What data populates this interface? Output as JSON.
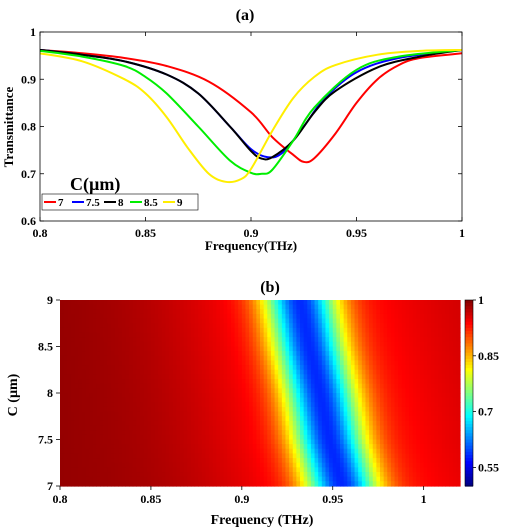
{
  "chart_data": [
    {
      "panel_label": "(a)",
      "type": "line",
      "xlabel": "Frequency(THz)",
      "ylabel": "Transmittance",
      "xlim": [
        0.8,
        1.0
      ],
      "ylim": [
        0.6,
        1.0
      ],
      "xticks": [
        "0.8",
        "0.85",
        "0.9",
        "0.95",
        "1"
      ],
      "yticks": [
        "0.6",
        "0.7",
        "0.8",
        "0.9",
        "1"
      ],
      "grid": false,
      "legend": {
        "title": "C(µm)",
        "placement": "bottom-left",
        "entries": [
          "7",
          "7.5",
          "8",
          "8.5",
          "9"
        ]
      },
      "series": [
        {
          "name": "7",
          "color": "#ff0000",
          "x": [
            0.8,
            0.82,
            0.84,
            0.86,
            0.88,
            0.9,
            0.91,
            0.92,
            0.925,
            0.93,
            0.94,
            0.95,
            0.96,
            0.97,
            0.98,
            1.0
          ],
          "y": [
            0.962,
            0.955,
            0.945,
            0.928,
            0.895,
            0.83,
            0.778,
            0.74,
            0.725,
            0.733,
            0.785,
            0.85,
            0.9,
            0.93,
            0.945,
            0.955
          ]
        },
        {
          "name": "7.5",
          "color": "#0000ff",
          "x": [
            0.8,
            0.82,
            0.84,
            0.86,
            0.875,
            0.89,
            0.9,
            0.908,
            0.915,
            0.925,
            0.935,
            0.95,
            0.97,
            1.0
          ],
          "y": [
            0.962,
            0.952,
            0.938,
            0.91,
            0.87,
            0.8,
            0.752,
            0.735,
            0.745,
            0.8,
            0.86,
            0.915,
            0.945,
            0.962
          ]
        },
        {
          "name": "8",
          "color": "#000000",
          "x": [
            0.8,
            0.82,
            0.84,
            0.86,
            0.875,
            0.89,
            0.9,
            0.905,
            0.91,
            0.92,
            0.93,
            0.94,
            0.96,
            0.98,
            1.0
          ],
          "y": [
            0.962,
            0.952,
            0.938,
            0.91,
            0.87,
            0.8,
            0.748,
            0.732,
            0.735,
            0.77,
            0.83,
            0.875,
            0.925,
            0.948,
            0.962
          ]
        },
        {
          "name": "8.5",
          "color": "#00ee00",
          "x": [
            0.8,
            0.82,
            0.84,
            0.85,
            0.86,
            0.875,
            0.89,
            0.9,
            0.905,
            0.91,
            0.92,
            0.93,
            0.95,
            0.97,
            1.0
          ],
          "y": [
            0.96,
            0.948,
            0.928,
            0.905,
            0.87,
            0.8,
            0.728,
            0.702,
            0.7,
            0.708,
            0.77,
            0.84,
            0.92,
            0.948,
            0.962
          ]
        },
        {
          "name": "9",
          "color": "#ffee00",
          "x": [
            0.8,
            0.82,
            0.84,
            0.85,
            0.86,
            0.87,
            0.88,
            0.888,
            0.895,
            0.9,
            0.91,
            0.92,
            0.93,
            0.94,
            0.96,
            0.98,
            1.0
          ],
          "y": [
            0.955,
            0.938,
            0.9,
            0.87,
            0.82,
            0.755,
            0.7,
            0.683,
            0.688,
            0.71,
            0.79,
            0.86,
            0.905,
            0.93,
            0.952,
            0.96,
            0.962
          ]
        }
      ]
    },
    {
      "panel_label": "(b)",
      "type": "heatmap",
      "xlabel": "Frequency (THz)",
      "ylabel": "C (µm)",
      "xlim": [
        0.8,
        1.02
      ],
      "ylim": [
        7,
        9
      ],
      "xticks": [
        "0.8",
        "0.85",
        "0.9",
        "0.95",
        "1"
      ],
      "yticks": [
        "7",
        "7.5",
        "8",
        "8.5",
        "9"
      ],
      "colorbar": {
        "range": [
          0.5,
          1.0
        ],
        "ticks": [
          "0.55",
          "0.7",
          "0.85",
          "1"
        ],
        "colormap": "jet"
      },
      "notch_center_by_C": [
        {
          "C": 7,
          "f": 0.955
        },
        {
          "C": 7.5,
          "f": 0.948
        },
        {
          "C": 8,
          "f": 0.943
        },
        {
          "C": 8.5,
          "f": 0.937
        },
        {
          "C": 9,
          "f": 0.932
        }
      ]
    }
  ]
}
